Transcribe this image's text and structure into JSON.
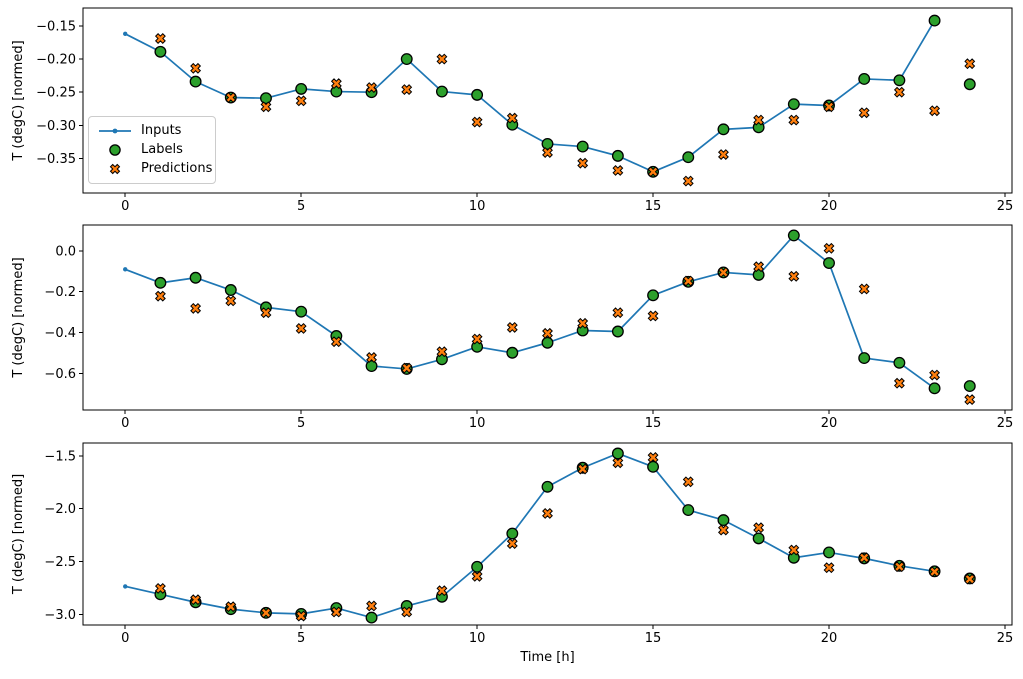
{
  "figure": {
    "background": "#ffffff",
    "text_color": "#000000",
    "xlabel": "Time [h]",
    "ylabel": "T (degC) [normed]",
    "legend": {
      "items": [
        {
          "label": "Inputs",
          "type": "line-dot",
          "color": "#1f77b4"
        },
        {
          "label": "Labels",
          "type": "circle",
          "color": "#2ca02c",
          "edgecolor": "#000000"
        },
        {
          "label": "Predictions",
          "type": "x",
          "color": "#ff7f0e",
          "edgecolor": "#000000"
        }
      ]
    }
  },
  "chart_data": [
    {
      "type": "line",
      "ylabel": "T (degC) [normed]",
      "xlabel": "",
      "grid": false,
      "legend_position": "center-left",
      "xlim": [
        -1.2,
        25.2
      ],
      "ylim": [
        -0.402,
        -0.123
      ],
      "xticks": {
        "values": [
          0,
          5,
          10,
          15,
          20,
          25
        ],
        "labels": [
          "0",
          "5",
          "10",
          "15",
          "20",
          "25"
        ]
      },
      "yticks": {
        "values": [
          -0.15,
          -0.2,
          -0.25,
          -0.3,
          -0.35
        ],
        "labels": [
          "−0.15",
          "−0.20",
          "−0.25",
          "−0.30",
          "−0.35"
        ]
      },
      "series": [
        {
          "name": "Inputs",
          "plot": "line",
          "marker": "dot",
          "color": "#1f77b4",
          "x": [
            0,
            1,
            2,
            3,
            4,
            5,
            6,
            7,
            8,
            9,
            10,
            11,
            12,
            13,
            14,
            15,
            16,
            17,
            18,
            19,
            20,
            21,
            22,
            23
          ],
          "y": [
            -0.162,
            -0.189,
            -0.234,
            -0.258,
            -0.259,
            -0.245,
            -0.249,
            -0.25,
            -0.2,
            -0.249,
            -0.254,
            -0.299,
            -0.328,
            -0.332,
            -0.346,
            -0.37,
            -0.348,
            -0.306,
            -0.303,
            -0.268,
            -0.27,
            -0.23,
            -0.232,
            -0.142
          ]
        },
        {
          "name": "Labels",
          "plot": "scatter",
          "marker": "circle",
          "color": "#2ca02c",
          "edgecolor": "#000000",
          "x": [
            1,
            2,
            3,
            4,
            5,
            6,
            7,
            8,
            9,
            10,
            11,
            12,
            13,
            14,
            15,
            16,
            17,
            18,
            19,
            20,
            21,
            22,
            23,
            24
          ],
          "y": [
            -0.189,
            -0.234,
            -0.258,
            -0.259,
            -0.245,
            -0.249,
            -0.25,
            -0.2,
            -0.249,
            -0.254,
            -0.299,
            -0.328,
            -0.332,
            -0.346,
            -0.37,
            -0.348,
            -0.306,
            -0.303,
            -0.268,
            -0.27,
            -0.23,
            -0.232,
            -0.142,
            -0.238
          ]
        },
        {
          "name": "Predictions",
          "plot": "scatter",
          "marker": "X",
          "color": "#ff7f0e",
          "edgecolor": "#000000",
          "x": [
            1,
            2,
            3,
            4,
            5,
            6,
            7,
            8,
            9,
            10,
            11,
            12,
            13,
            14,
            15,
            16,
            17,
            18,
            19,
            20,
            21,
            22,
            23,
            24
          ],
          "y": [
            -0.169,
            -0.214,
            -0.258,
            -0.272,
            -0.263,
            -0.237,
            -0.243,
            -0.246,
            -0.2,
            -0.295,
            -0.289,
            -0.341,
            -0.357,
            -0.368,
            -0.37,
            -0.384,
            -0.344,
            -0.292,
            -0.292,
            -0.272,
            -0.281,
            -0.25,
            -0.278,
            -0.207
          ]
        }
      ]
    },
    {
      "type": "line",
      "ylabel": "T (degC) [normed]",
      "xlabel": "",
      "grid": false,
      "xlim": [
        -1.2,
        25.2
      ],
      "ylim": [
        -0.779,
        0.126
      ],
      "xticks": {
        "values": [
          0,
          5,
          10,
          15,
          20,
          25
        ],
        "labels": [
          "0",
          "5",
          "10",
          "15",
          "20",
          "25"
        ]
      },
      "yticks": {
        "values": [
          0.0,
          -0.2,
          -0.4,
          -0.6
        ],
        "labels": [
          "0.0",
          "−0.2",
          "−0.4",
          "−0.6"
        ]
      },
      "series": [
        {
          "name": "Inputs",
          "plot": "line",
          "marker": "dot",
          "color": "#1f77b4",
          "x": [
            0,
            1,
            2,
            3,
            4,
            5,
            6,
            7,
            8,
            9,
            10,
            11,
            12,
            13,
            14,
            15,
            16,
            17,
            18,
            19,
            20,
            21,
            22,
            23
          ],
          "y": [
            -0.091,
            -0.157,
            -0.132,
            -0.192,
            -0.277,
            -0.298,
            -0.417,
            -0.564,
            -0.578,
            -0.531,
            -0.47,
            -0.499,
            -0.45,
            -0.39,
            -0.395,
            -0.218,
            -0.152,
            -0.106,
            -0.118,
            0.075,
            -0.06,
            -0.525,
            -0.548,
            -0.673
          ]
        },
        {
          "name": "Labels",
          "plot": "scatter",
          "marker": "circle",
          "color": "#2ca02c",
          "edgecolor": "#000000",
          "x": [
            1,
            2,
            3,
            4,
            5,
            6,
            7,
            8,
            9,
            10,
            11,
            12,
            13,
            14,
            15,
            16,
            17,
            18,
            19,
            20,
            21,
            22,
            23,
            24
          ],
          "y": [
            -0.157,
            -0.132,
            -0.192,
            -0.277,
            -0.298,
            -0.417,
            -0.564,
            -0.578,
            -0.531,
            -0.47,
            -0.499,
            -0.45,
            -0.39,
            -0.395,
            -0.218,
            -0.152,
            -0.106,
            -0.118,
            0.075,
            -0.06,
            -0.525,
            -0.548,
            -0.673,
            -0.662
          ]
        },
        {
          "name": "Predictions",
          "plot": "scatter",
          "marker": "X",
          "color": "#ff7f0e",
          "edgecolor": "#000000",
          "x": [
            1,
            2,
            3,
            4,
            5,
            6,
            7,
            8,
            9,
            10,
            11,
            12,
            13,
            14,
            15,
            16,
            17,
            18,
            19,
            20,
            21,
            22,
            23,
            24
          ],
          "y": [
            -0.222,
            -0.282,
            -0.245,
            -0.303,
            -0.38,
            -0.445,
            -0.522,
            -0.574,
            -0.494,
            -0.432,
            -0.375,
            -0.404,
            -0.355,
            -0.303,
            -0.319,
            -0.148,
            -0.106,
            -0.078,
            -0.125,
            0.012,
            -0.187,
            -0.648,
            -0.608,
            -0.728
          ]
        }
      ]
    },
    {
      "type": "line",
      "ylabel": "T (degC) [normed]",
      "xlabel": "Time [h]",
      "grid": false,
      "xlim": [
        -1.2,
        25.2
      ],
      "ylim": [
        -3.1,
        -1.379
      ],
      "xticks": {
        "values": [
          0,
          5,
          10,
          15,
          20,
          25
        ],
        "labels": [
          "0",
          "5",
          "10",
          "15",
          "20",
          "25"
        ]
      },
      "yticks": {
        "values": [
          -1.5,
          -2.0,
          -2.5,
          -3.0
        ],
        "labels": [
          "−1.5",
          "−2.0",
          "−2.5",
          "−3.0"
        ]
      },
      "series": [
        {
          "name": "Inputs",
          "plot": "line",
          "marker": "dot",
          "color": "#1f77b4",
          "x": [
            0,
            1,
            2,
            3,
            4,
            5,
            6,
            7,
            8,
            9,
            10,
            11,
            12,
            13,
            14,
            15,
            16,
            17,
            18,
            19,
            20,
            21,
            22,
            23
          ],
          "y": [
            -2.735,
            -2.81,
            -2.885,
            -2.95,
            -2.985,
            -2.995,
            -2.94,
            -3.03,
            -2.92,
            -2.833,
            -2.55,
            -2.235,
            -1.793,
            -1.613,
            -1.478,
            -1.604,
            -2.013,
            -2.108,
            -2.281,
            -2.464,
            -2.414,
            -2.47,
            -2.54,
            -2.592
          ]
        },
        {
          "name": "Labels",
          "plot": "scatter",
          "marker": "circle",
          "color": "#2ca02c",
          "edgecolor": "#000000",
          "x": [
            1,
            2,
            3,
            4,
            5,
            6,
            7,
            8,
            9,
            10,
            11,
            12,
            13,
            14,
            15,
            16,
            17,
            18,
            19,
            20,
            21,
            22,
            23,
            24
          ],
          "y": [
            -2.81,
            -2.885,
            -2.95,
            -2.985,
            -2.995,
            -2.94,
            -3.03,
            -2.92,
            -2.833,
            -2.55,
            -2.235,
            -1.793,
            -1.613,
            -1.478,
            -1.604,
            -2.013,
            -2.108,
            -2.281,
            -2.464,
            -2.414,
            -2.47,
            -2.54,
            -2.592,
            -2.66
          ]
        },
        {
          "name": "Predictions",
          "plot": "scatter",
          "marker": "X",
          "color": "#ff7f0e",
          "edgecolor": "#000000",
          "x": [
            1,
            2,
            3,
            4,
            5,
            6,
            7,
            8,
            9,
            10,
            11,
            12,
            13,
            14,
            15,
            16,
            17,
            18,
            19,
            20,
            21,
            22,
            23,
            24
          ],
          "y": [
            -2.754,
            -2.861,
            -2.927,
            -2.985,
            -3.015,
            -2.977,
            -2.92,
            -2.977,
            -2.776,
            -2.64,
            -2.33,
            -2.045,
            -1.625,
            -1.566,
            -1.516,
            -1.746,
            -2.202,
            -2.18,
            -2.391,
            -2.558,
            -2.464,
            -2.549,
            -2.596,
            -2.666
          ]
        }
      ]
    }
  ]
}
